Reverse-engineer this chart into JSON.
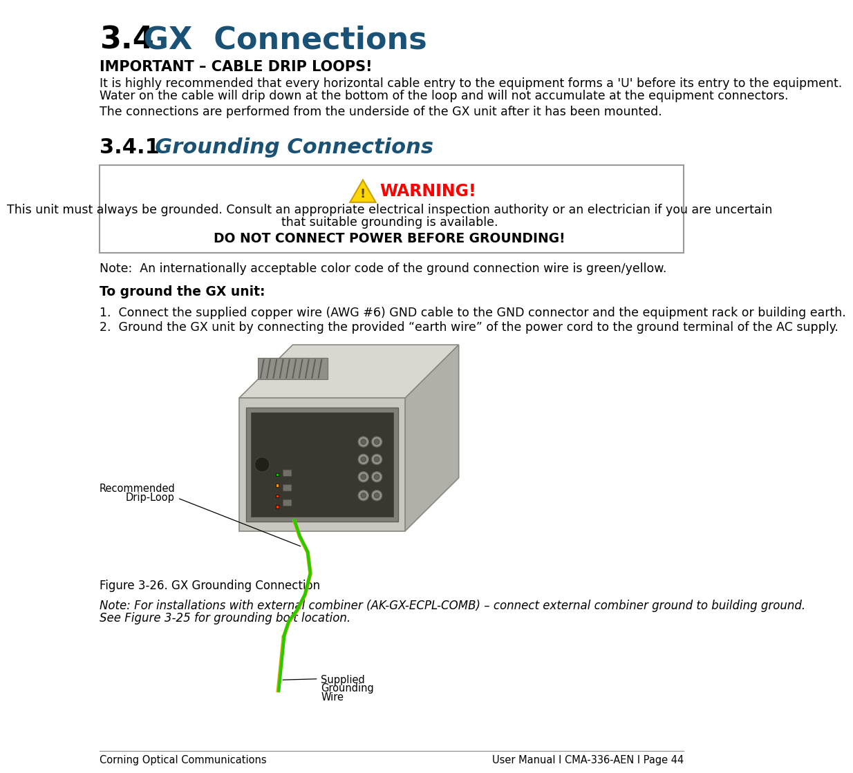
{
  "title_number": "3.4",
  "title_text": " GX  Connections",
  "title_color_number": "#000000",
  "title_color_text": "#1a5276",
  "important_heading": "IMPORTANT – CABLE DRIP LOOPS!",
  "important_body1": "It is highly recommended that every horizontal cable entry to the equipment forms a 'U' before its entry to the equipment.",
  "important_body2": "Water on the cable will drip down at the bottom of the loop and will not accumulate at the equipment connectors.",
  "important_body3": "The connections are performed from the underside of the GX unit after it has been mounted.",
  "section_number": "3.4.1",
  "section_title": "  Grounding Connections",
  "section_color": "#1a5276",
  "warning_body1": "This unit must always be grounded. Consult an appropriate electrical inspection authority or an electrician if you are uncertain",
  "warning_body2": "that suitable grounding is available.",
  "warning_body3": "DO NOT CONNECT POWER BEFORE GROUNDING!",
  "note_text": "Note:  An internationally acceptable color code of the ground connection wire is green/yellow.",
  "to_ground_heading": "To ground the GX unit:",
  "step1": "1.  Connect the supplied copper wire (AWG #6) GND cable to the GND connector and the equipment rack or building earth.",
  "step2": "2.  Ground the GX unit by connecting the provided “earth wire” of the power cord to the ground terminal of the AC supply.",
  "figure_caption": "Figure 3-26. GX Grounding Connection",
  "note_bottom1": "Note: For installations with external combiner (AK-GX-ECPL-COMB) – connect external combiner ground to building ground.",
  "note_bottom2": "See Figure 3-25 for grounding bolt location.",
  "footer_left": "Corning Optical Communications",
  "footer_right": "User Manual I CMA-336-AEN I Page 44",
  "bg_color": "#ffffff",
  "text_color": "#000000",
  "box_color": "#d4b800",
  "gx_body_color": "#c8c8c0",
  "gx_top_color": "#d8d8d0",
  "gx_right_color": "#b0b0a8",
  "gx_panel_color": "#989890",
  "gx_dark_color": "#707068"
}
